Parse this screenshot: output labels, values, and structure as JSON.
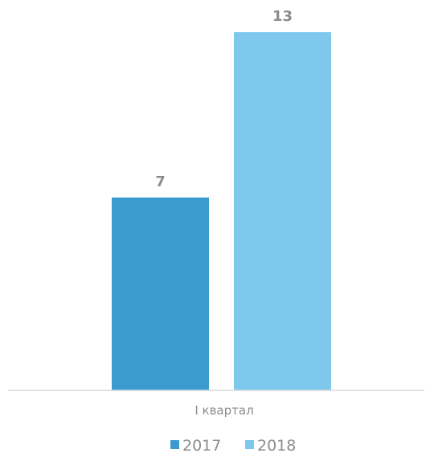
{
  "chart_data": {
    "type": "bar",
    "categories": [
      "I квартал"
    ],
    "series": [
      {
        "name": "2017",
        "values": [
          7
        ],
        "color": "#3b9bd0"
      },
      {
        "name": "2018",
        "values": [
          13
        ],
        "color": "#7ec8ee"
      }
    ],
    "ylim": [
      0,
      14
    ],
    "grid": false,
    "legend_position": "bottom",
    "data_labels": true
  }
}
